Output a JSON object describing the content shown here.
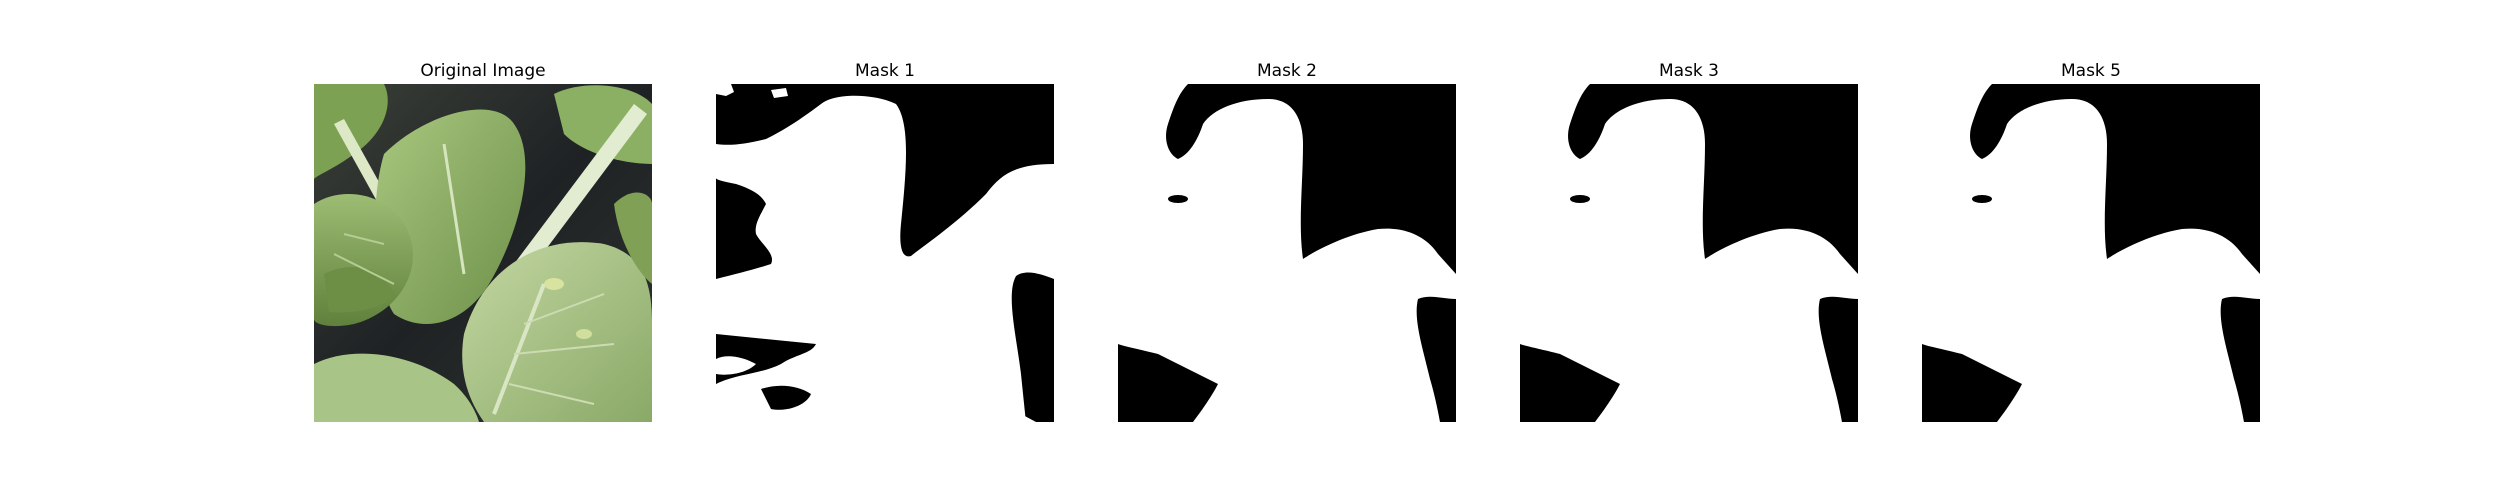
{
  "panels": [
    {
      "title": "Original Image",
      "kind": "photo"
    },
    {
      "title": "Mask 1",
      "kind": "mask"
    },
    {
      "title": "Mask 2",
      "kind": "mask"
    },
    {
      "title": "Mask 3",
      "kind": "mask"
    },
    {
      "title": "Mask 5",
      "kind": "mask"
    }
  ],
  "colors": {
    "mask_foreground": "#ffffff",
    "mask_background": "#000000",
    "leaf_light": "#b7cf95",
    "leaf_mid": "#8cad68",
    "leaf_dark": "#5f7f3f",
    "background_dark": "#26292b"
  }
}
